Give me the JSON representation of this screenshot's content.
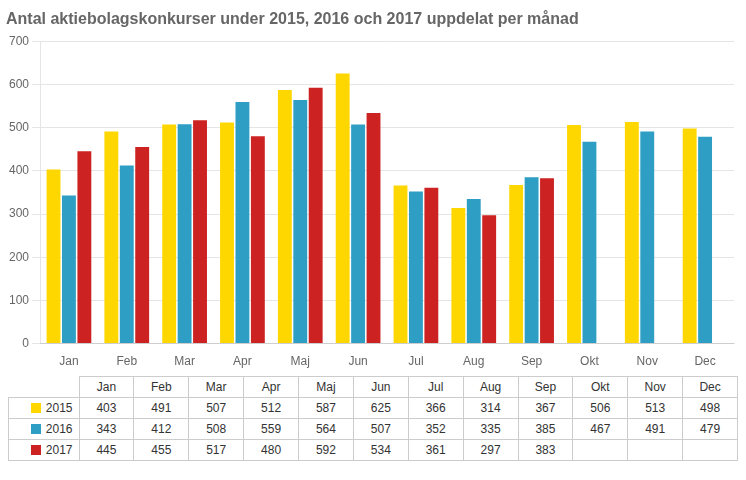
{
  "chart_data": {
    "type": "bar",
    "title": "Antal aktiebolagskonkurser under 2015, 2016 och 2017 uppdelat per månad",
    "categories": [
      "Jan",
      "Feb",
      "Mar",
      "Apr",
      "Maj",
      "Jun",
      "Jul",
      "Aug",
      "Sep",
      "Okt",
      "Nov",
      "Dec"
    ],
    "series": [
      {
        "name": "2015",
        "color": "#FFD700",
        "values": [
          403,
          491,
          507,
          512,
          587,
          625,
          366,
          314,
          367,
          506,
          513,
          498
        ]
      },
      {
        "name": "2016",
        "color": "#2E9EC4",
        "values": [
          343,
          412,
          508,
          559,
          564,
          507,
          352,
          335,
          385,
          467,
          491,
          479
        ]
      },
      {
        "name": "2017",
        "color": "#CC2222",
        "values": [
          445,
          455,
          517,
          480,
          592,
          534,
          361,
          297,
          383,
          null,
          null,
          null
        ]
      }
    ],
    "ylim": [
      0,
      700
    ],
    "yticks": [
      0,
      100,
      200,
      300,
      400,
      500,
      600,
      700
    ],
    "grid": true
  }
}
